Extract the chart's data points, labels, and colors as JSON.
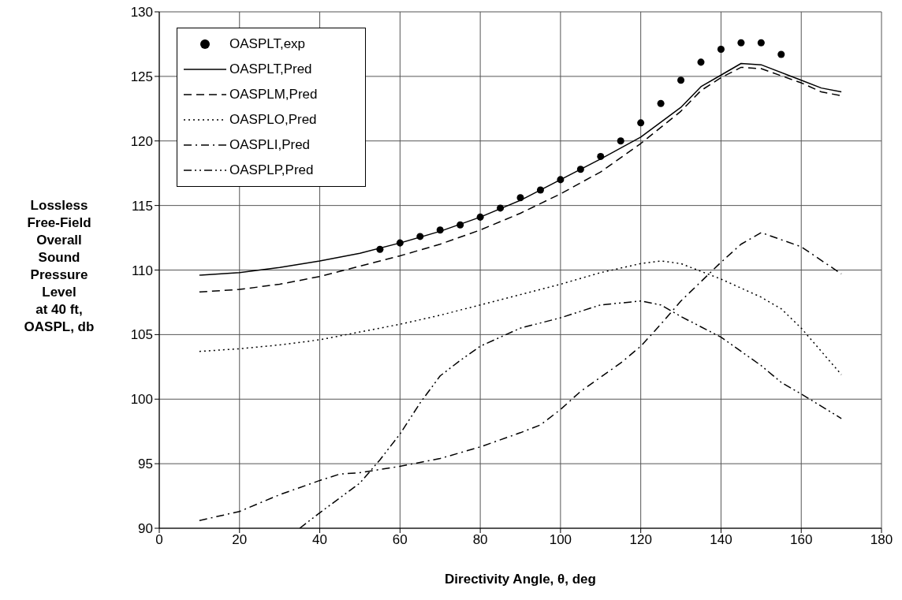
{
  "chart_data": {
    "type": "line",
    "xlabel": "Directivity Angle, θ, deg",
    "ylabel": "Lossless\nFree-Field\nOverall\nSound\nPressure\nLevel\nat 40 ft,\nOASPL, db",
    "xlim": [
      0,
      180
    ],
    "xticks": [
      0,
      20,
      40,
      60,
      80,
      100,
      120,
      140,
      160,
      180
    ],
    "ylim": [
      90,
      130
    ],
    "yticks": [
      90,
      95,
      100,
      105,
      110,
      115,
      120,
      125,
      130
    ],
    "grid": true,
    "legend": "top left",
    "series": [
      {
        "name": "OASPLT,exp",
        "type": "scatter",
        "marker": "circle",
        "color": "#000000",
        "x": [
          55,
          60,
          65,
          70,
          75,
          80,
          85,
          90,
          95,
          100,
          105,
          110,
          115,
          120,
          125,
          130,
          135,
          140,
          145,
          150,
          155
        ],
        "values": [
          111.6,
          112.1,
          112.6,
          113.1,
          113.5,
          114.1,
          114.8,
          115.6,
          116.2,
          117.0,
          117.8,
          118.8,
          120.0,
          121.4,
          122.9,
          124.7,
          126.1,
          127.1,
          127.6,
          127.6,
          126.7
        ]
      },
      {
        "name": "OASPLT,Pred",
        "type": "line",
        "line_style": "solid",
        "color": "#000000",
        "x": [
          10,
          20,
          30,
          40,
          50,
          60,
          70,
          80,
          90,
          100,
          110,
          120,
          130,
          135,
          140,
          145,
          150,
          160,
          165,
          170
        ],
        "values": [
          109.6,
          109.8,
          110.2,
          110.7,
          111.3,
          112.1,
          113.0,
          114.1,
          115.4,
          117.0,
          118.6,
          120.3,
          122.6,
          124.2,
          125.1,
          126.0,
          125.9,
          124.7,
          124.1,
          123.8
        ]
      },
      {
        "name": "OASPLM,Pred",
        "type": "line",
        "line_style": "dashed",
        "color": "#000000",
        "x": [
          10,
          20,
          30,
          40,
          50,
          60,
          70,
          80,
          90,
          100,
          110,
          120,
          130,
          135,
          140,
          145,
          150,
          160,
          165,
          170
        ],
        "values": [
          108.3,
          108.5,
          108.9,
          109.5,
          110.3,
          111.1,
          112.0,
          113.1,
          114.4,
          115.9,
          117.6,
          119.8,
          122.3,
          123.9,
          124.9,
          125.7,
          125.6,
          124.5,
          123.8,
          123.5
        ]
      },
      {
        "name": "OASPLO,Pred",
        "type": "line",
        "line_style": "dotted",
        "color": "#000000",
        "x": [
          10,
          20,
          30,
          40,
          50,
          60,
          70,
          80,
          90,
          100,
          110,
          120,
          125,
          130,
          140,
          150,
          155,
          160,
          170
        ],
        "values": [
          103.7,
          103.9,
          104.2,
          104.6,
          105.2,
          105.8,
          106.5,
          107.3,
          108.1,
          108.9,
          109.8,
          110.5,
          110.7,
          110.5,
          109.3,
          107.9,
          107.0,
          105.5,
          101.9
        ]
      },
      {
        "name": "OASPLI,Pred",
        "type": "line",
        "line_style": "dashdot",
        "color": "#000000",
        "x": [
          10,
          20,
          30,
          40,
          45,
          50,
          60,
          70,
          80,
          90,
          95,
          100,
          105,
          110,
          115,
          120,
          125,
          130,
          135,
          140,
          145,
          150,
          160,
          170
        ],
        "values": [
          90.6,
          91.3,
          92.6,
          93.7,
          94.2,
          94.3,
          94.8,
          95.4,
          96.3,
          97.4,
          98.0,
          99.2,
          100.6,
          101.7,
          102.8,
          104.1,
          105.8,
          107.6,
          109.1,
          110.6,
          112.0,
          112.9,
          111.8,
          109.7
        ]
      },
      {
        "name": "OASPLP,Pred",
        "type": "line",
        "line_style": "dashdotdot",
        "color": "#000000",
        "x": [
          35,
          40,
          50,
          55,
          60,
          65,
          70,
          75,
          80,
          90,
          100,
          110,
          120,
          125,
          130,
          140,
          150,
          155,
          160,
          170
        ],
        "values": [
          90.0,
          91.2,
          93.5,
          95.3,
          97.3,
          99.7,
          101.8,
          103.0,
          104.1,
          105.5,
          106.3,
          107.3,
          107.6,
          107.3,
          106.4,
          104.8,
          102.6,
          101.3,
          100.4,
          98.5
        ]
      }
    ]
  }
}
